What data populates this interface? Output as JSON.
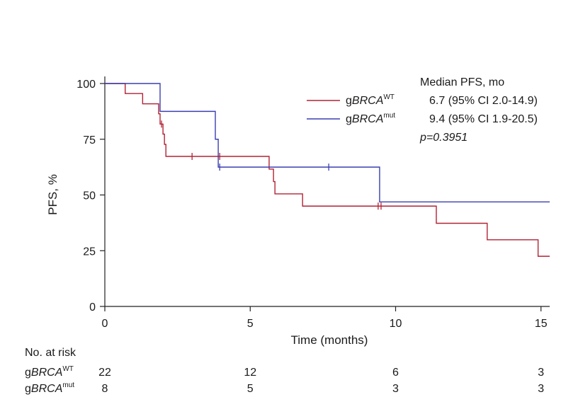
{
  "chart_data": {
    "type": "line",
    "title": "",
    "xlabel": "Time (months)",
    "ylabel": "PFS, %",
    "xlim": [
      0,
      15.3
    ],
    "ylim": [
      0,
      100
    ],
    "xticks": [
      0,
      5,
      10,
      15
    ],
    "yticks": [
      0,
      25,
      50,
      75,
      100
    ],
    "grid": false,
    "legend_placement": "top-right",
    "legend": {
      "title": "Median PFS, mo",
      "pvalue": "p=0.3951"
    },
    "series": [
      {
        "name_prefix": "g",
        "name_italic": "BRCA",
        "name_sup": "WT",
        "median_text": "6.7 (95% CI 2.0-14.9)",
        "color": "#b22234",
        "steps": [
          [
            0,
            100
          ],
          [
            0.7,
            95.5
          ],
          [
            1.3,
            90.9
          ],
          [
            1.85,
            86.4
          ],
          [
            1.9,
            81.8
          ],
          [
            2.0,
            77.3
          ],
          [
            2.05,
            72.7
          ],
          [
            2.1,
            67.3
          ],
          [
            5.65,
            61.6
          ],
          [
            5.8,
            56.0
          ],
          [
            5.85,
            50.5
          ],
          [
            6.8,
            45.0
          ],
          [
            11.4,
            37.3
          ],
          [
            13.15,
            29.9
          ],
          [
            14.9,
            22.5
          ],
          [
            15.3,
            22.5
          ]
        ],
        "censors": [
          [
            1.95,
            81.8
          ],
          [
            3.0,
            67.3
          ],
          [
            3.95,
            67.3
          ],
          [
            9.4,
            45.0
          ],
          [
            9.5,
            45.0
          ]
        ]
      },
      {
        "name_prefix": "g",
        "name_italic": "BRCA",
        "name_sup": "mut",
        "median_text": "9.4 (95% CI 1.9-20.5)",
        "color": "#3a3fb0",
        "steps": [
          [
            0,
            100
          ],
          [
            1.9,
            87.5
          ],
          [
            3.8,
            75.0
          ],
          [
            3.9,
            62.5
          ],
          [
            9.45,
            46.9
          ],
          [
            15.3,
            46.9
          ]
        ],
        "censors": [
          [
            3.95,
            62.5
          ],
          [
            7.7,
            62.5
          ]
        ]
      }
    ],
    "risk_table": {
      "title": "No. at risk",
      "times": [
        0,
        5,
        10,
        15
      ],
      "rows": [
        {
          "prefix": "g",
          "italic": "BRCA",
          "sup": "WT",
          "counts": [
            "22",
            "12",
            "6",
            "3"
          ]
        },
        {
          "prefix": "g",
          "italic": "BRCA",
          "sup": "mut",
          "counts": [
            "8",
            "5",
            "3",
            "3"
          ]
        }
      ]
    }
  }
}
